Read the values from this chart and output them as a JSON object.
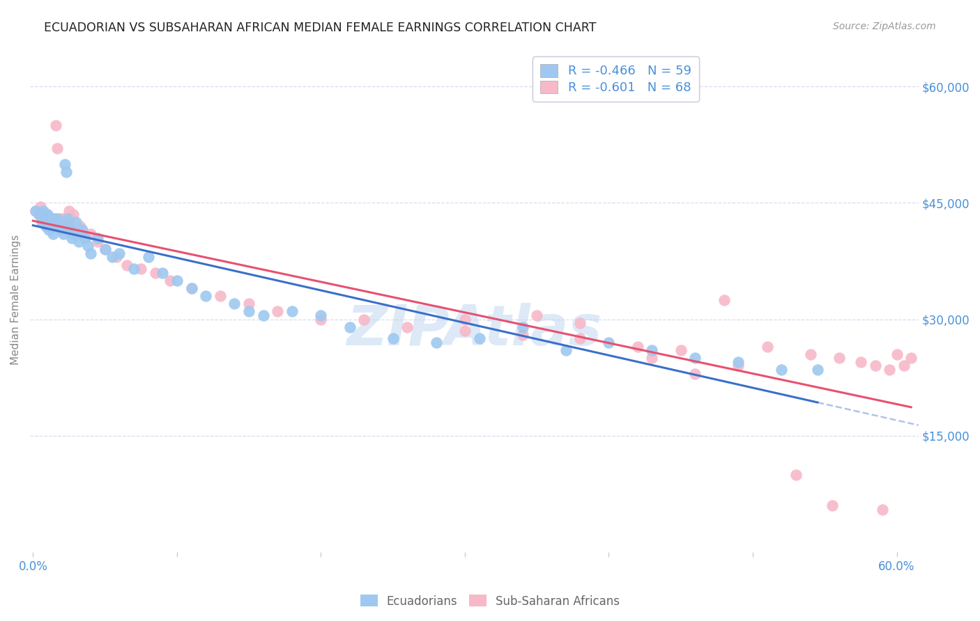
{
  "title": "ECUADORIAN VS SUBSAHARAN AFRICAN MEDIAN FEMALE EARNINGS CORRELATION CHART",
  "source": "Source: ZipAtlas.com",
  "ylabel": "Median Female Earnings",
  "ytick_labels": [
    "$15,000",
    "$30,000",
    "$45,000",
    "$60,000"
  ],
  "ytick_values": [
    15000,
    30000,
    45000,
    60000
  ],
  "ymin": 0,
  "ymax": 65000,
  "xmin": -0.002,
  "xmax": 0.615,
  "blue_label": "Ecuadorians",
  "pink_label": "Sub-Saharan Africans",
  "blue_R": "R = -0.466",
  "pink_R": "R = -0.601",
  "blue_N": "N = 59",
  "pink_N": "N = 68",
  "blue_color": "#9EC8F0",
  "pink_color": "#F7B8C8",
  "blue_line_color": "#3A6FC9",
  "pink_line_color": "#E85070",
  "dashed_line_color": "#B0C4E8",
  "watermark": "ZIPAtlas",
  "background_color": "#FFFFFF",
  "grid_color": "#D8DCF0",
  "title_color": "#222222",
  "axis_tick_color": "#4A90D9",
  "legend_color": "#4A90D9",
  "source_color": "#999999",
  "ylabel_color": "#888888",
  "blue_scatter_x": [
    0.002,
    0.004,
    0.005,
    0.006,
    0.007,
    0.008,
    0.009,
    0.01,
    0.011,
    0.012,
    0.013,
    0.014,
    0.015,
    0.016,
    0.017,
    0.018,
    0.019,
    0.02,
    0.021,
    0.022,
    0.023,
    0.024,
    0.025,
    0.026,
    0.027,
    0.028,
    0.03,
    0.032,
    0.034,
    0.036,
    0.038,
    0.04,
    0.045,
    0.05,
    0.055,
    0.06,
    0.07,
    0.08,
    0.09,
    0.1,
    0.11,
    0.12,
    0.14,
    0.15,
    0.16,
    0.18,
    0.2,
    0.22,
    0.25,
    0.28,
    0.31,
    0.34,
    0.37,
    0.4,
    0.43,
    0.46,
    0.49,
    0.52,
    0.545
  ],
  "blue_scatter_y": [
    44000,
    43500,
    43800,
    42500,
    44000,
    43000,
    42000,
    43500,
    41500,
    43000,
    42500,
    41000,
    43000,
    42500,
    43000,
    42000,
    41500,
    42000,
    41000,
    50000,
    49000,
    43000,
    42000,
    41500,
    40500,
    41000,
    42500,
    40000,
    41500,
    40500,
    39500,
    38500,
    40500,
    39000,
    38000,
    38500,
    36500,
    38000,
    36000,
    35000,
    34000,
    33000,
    32000,
    31000,
    30500,
    31000,
    30500,
    29000,
    27500,
    27000,
    27500,
    29000,
    26000,
    27000,
    26000,
    25000,
    24500,
    23500,
    23500
  ],
  "pink_scatter_x": [
    0.002,
    0.004,
    0.005,
    0.006,
    0.007,
    0.008,
    0.009,
    0.01,
    0.011,
    0.012,
    0.013,
    0.014,
    0.015,
    0.016,
    0.017,
    0.018,
    0.019,
    0.02,
    0.021,
    0.022,
    0.023,
    0.024,
    0.025,
    0.026,
    0.027,
    0.028,
    0.03,
    0.033,
    0.036,
    0.04,
    0.045,
    0.05,
    0.058,
    0.065,
    0.075,
    0.085,
    0.095,
    0.11,
    0.13,
    0.15,
    0.17,
    0.2,
    0.23,
    0.26,
    0.3,
    0.34,
    0.38,
    0.42,
    0.45,
    0.48,
    0.51,
    0.54,
    0.56,
    0.575,
    0.585,
    0.595,
    0.6,
    0.605,
    0.61,
    0.3,
    0.35,
    0.38,
    0.43,
    0.46,
    0.49,
    0.53,
    0.555,
    0.59
  ],
  "pink_scatter_y": [
    44000,
    43500,
    44500,
    43000,
    42500,
    43000,
    42000,
    43500,
    42500,
    43000,
    42000,
    43000,
    42500,
    55000,
    52000,
    43000,
    42000,
    43000,
    42000,
    43000,
    41500,
    42500,
    44000,
    43000,
    41500,
    43500,
    41000,
    42000,
    40500,
    41000,
    40000,
    39000,
    38000,
    37000,
    36500,
    36000,
    35000,
    34000,
    33000,
    32000,
    31000,
    30000,
    30000,
    29000,
    28500,
    28000,
    27500,
    26500,
    26000,
    32500,
    26500,
    25500,
    25000,
    24500,
    24000,
    23500,
    25500,
    24000,
    25000,
    30000,
    30500,
    29500,
    25000,
    23000,
    24000,
    10000,
    6000,
    5500
  ]
}
